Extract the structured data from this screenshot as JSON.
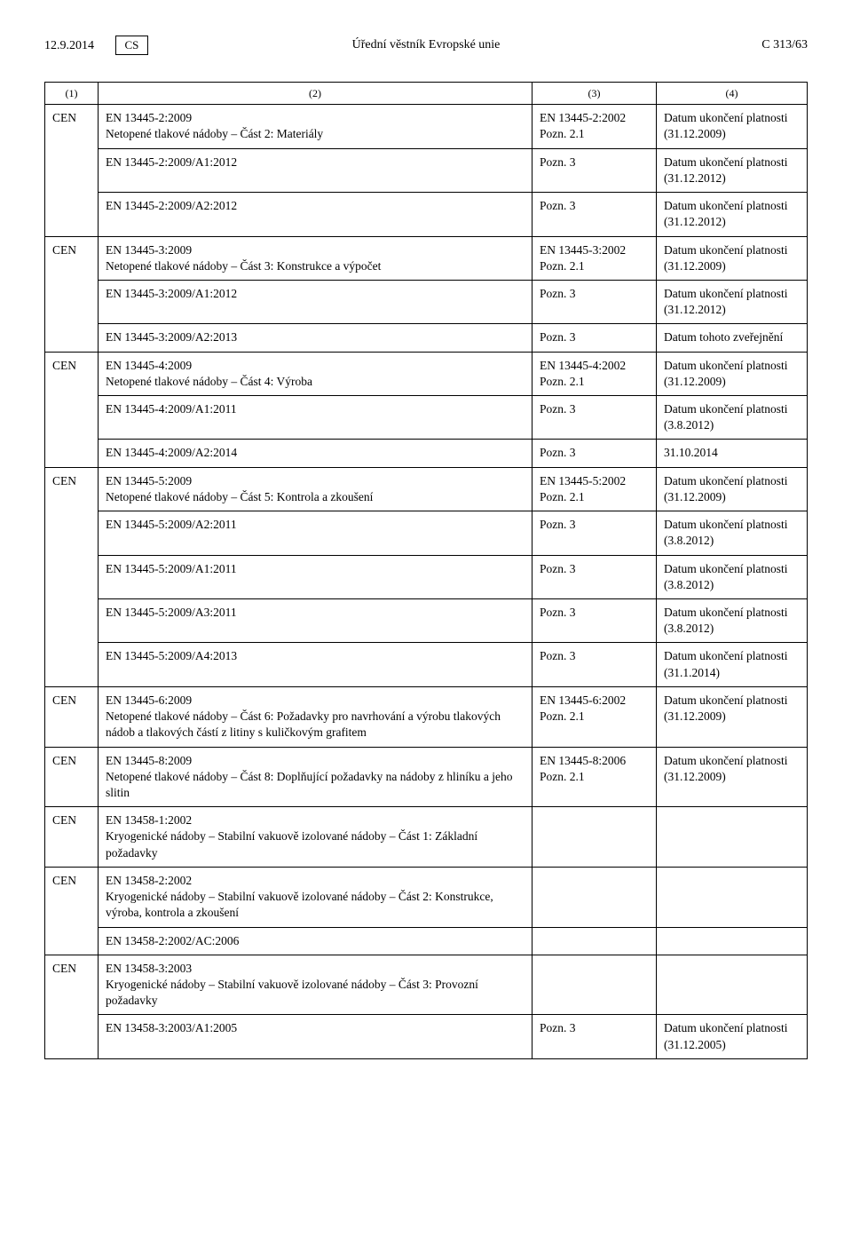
{
  "header": {
    "date": "12.9.2014",
    "lang_box": "CS",
    "journal": "Úřední věstník Evropské unie",
    "page_ref": "C 313/63"
  },
  "cols": {
    "c1": "(1)",
    "c2": "(2)",
    "c3": "(3)",
    "c4": "(4)"
  },
  "rows": [
    {
      "org": "CEN",
      "main": {
        "code": "EN 13445-2:2009",
        "desc": "Netopené tlakové nádoby – Část 2: Materiály",
        "ref": "EN 13445-2:2002",
        "ref_pozn": "Pozn. 2.1",
        "status": "Datum ukončení platnosti",
        "status_date": "(31.12.2009)"
      },
      "subs": [
        {
          "code": "EN 13445-2:2009/A1:2012",
          "pozn": "Pozn. 3",
          "status": "Datum ukončení platnosti",
          "status_date": "(31.12.2012)"
        },
        {
          "code": "EN 13445-2:2009/A2:2012",
          "pozn": "Pozn. 3",
          "status": "Datum ukončení platnosti",
          "status_date": "(31.12.2012)"
        }
      ]
    },
    {
      "org": "CEN",
      "main": {
        "code": "EN 13445-3:2009",
        "desc": "Netopené tlakové nádoby – Část 3: Konstrukce a výpočet",
        "ref": "EN 13445-3:2002",
        "ref_pozn": "Pozn. 2.1",
        "status": "Datum ukončení platnosti",
        "status_date": "(31.12.2009)"
      },
      "subs": [
        {
          "code": "EN 13445-3:2009/A1:2012",
          "pozn": "Pozn. 3",
          "status": "Datum ukončení platnosti",
          "status_date": "(31.12.2012)"
        },
        {
          "code": "EN 13445-3:2009/A2:2013",
          "pozn": "Pozn. 3",
          "status": "Datum tohoto zveřejnění",
          "status_date": ""
        }
      ]
    },
    {
      "org": "CEN",
      "main": {
        "code": "EN 13445-4:2009",
        "desc": "Netopené tlakové nádoby – Část 4: Výroba",
        "ref": "EN 13445-4:2002",
        "ref_pozn": "Pozn. 2.1",
        "status": "Datum ukončení platnosti",
        "status_date": "(31.12.2009)"
      },
      "subs": [
        {
          "code": "EN 13445-4:2009/A1:2011",
          "pozn": "Pozn. 3",
          "status": "Datum ukončení platnosti",
          "status_date": "(3.8.2012)"
        },
        {
          "code": "EN 13445-4:2009/A2:2014",
          "pozn": "Pozn. 3",
          "status": "31.10.2014",
          "status_date": ""
        }
      ]
    },
    {
      "org": "CEN",
      "main": {
        "code": "EN 13445-5:2009",
        "desc": "Netopené tlakové nádoby – Část 5: Kontrola a zkoušení",
        "ref": "EN 13445-5:2002",
        "ref_pozn": "Pozn. 2.1",
        "status": "Datum ukončení platnosti",
        "status_date": "(31.12.2009)"
      },
      "subs": [
        {
          "code": "EN 13445-5:2009/A2:2011",
          "pozn": "Pozn. 3",
          "status": "Datum ukončení platnosti",
          "status_date": "(3.8.2012)"
        },
        {
          "code": "EN 13445-5:2009/A1:2011",
          "pozn": "Pozn. 3",
          "status": "Datum ukončení platnosti",
          "status_date": "(3.8.2012)"
        },
        {
          "code": "EN 13445-5:2009/A3:2011",
          "pozn": "Pozn. 3",
          "status": "Datum ukončení platnosti",
          "status_date": "(3.8.2012)"
        },
        {
          "code": "EN 13445-5:2009/A4:2013",
          "pozn": "Pozn. 3",
          "status": "Datum ukončení platnosti",
          "status_date": "(31.1.2014)"
        }
      ]
    },
    {
      "org": "CEN",
      "main": {
        "code": "EN 13445-6:2009",
        "desc": "Netopené tlakové nádoby – Část 6: Požadavky pro navrhování a výrobu tlakových nádob a tlakových částí z litiny s kuličkovým grafitem",
        "ref": "EN 13445-6:2002",
        "ref_pozn": "Pozn. 2.1",
        "status": "Datum ukončení platnosti",
        "status_date": "(31.12.2009)"
      },
      "subs": []
    },
    {
      "org": "CEN",
      "main": {
        "code": "EN 13445-8:2009",
        "desc": "Netopené tlakové nádoby – Část 8: Doplňující požadavky na nádoby z hliníku a jeho slitin",
        "ref": "EN 13445-8:2006",
        "ref_pozn": "Pozn. 2.1",
        "status": "Datum ukončení platnosti",
        "status_date": "(31.12.2009)"
      },
      "subs": []
    },
    {
      "org": "CEN",
      "main": {
        "code": "EN 13458-1:2002",
        "desc": "Kryogenické nádoby – Stabilní vakuově izolované nádoby – Část 1: Základní požadavky",
        "ref": "",
        "ref_pozn": "",
        "status": "",
        "status_date": ""
      },
      "subs": []
    },
    {
      "org": "CEN",
      "main": {
        "code": "EN 13458-2:2002",
        "desc": "Kryogenické nádoby – Stabilní vakuově izolované nádoby – Část 2: Konstrukce, výroba, kontrola a zkoušení",
        "ref": "",
        "ref_pozn": "",
        "status": "",
        "status_date": ""
      },
      "subs": [
        {
          "code": "EN 13458-2:2002/AC:2006",
          "pozn": "",
          "status": "",
          "status_date": ""
        }
      ]
    },
    {
      "org": "CEN",
      "main": {
        "code": "EN 13458-3:2003",
        "desc": "Kryogenické nádoby – Stabilní vakuově izolované nádoby – Část 3: Provozní požadavky",
        "ref": "",
        "ref_pozn": "",
        "status": "",
        "status_date": ""
      },
      "subs": [
        {
          "code": "EN 13458-3:2003/A1:2005",
          "pozn": "Pozn. 3",
          "status": "Datum ukončení platnosti",
          "status_date": "(31.12.2005)"
        }
      ]
    }
  ]
}
